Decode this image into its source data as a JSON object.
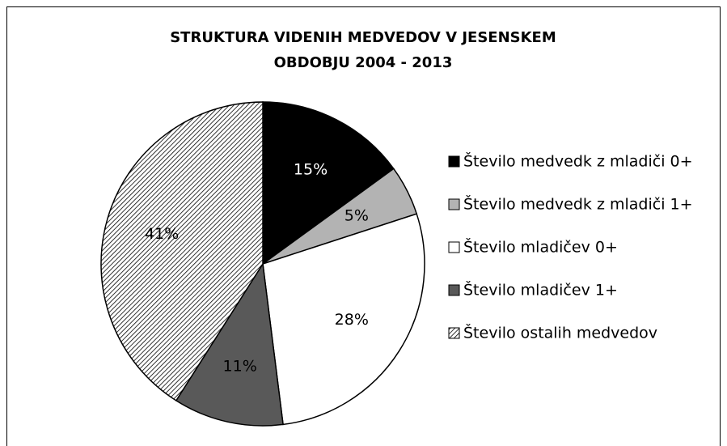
{
  "chart_data": {
    "type": "pie",
    "title": [
      "STRUKTURA VIDENIH MEDVEDOV V JESENSKEM",
      "OBDOBJU 2004 - 2013"
    ],
    "categories": [
      "Število medvedk z mladiči 0+",
      "Število medvedk z mladiči 1+",
      "Število mladičev 0+",
      "Število mladičev 1+",
      "Število ostalih medvedov"
    ],
    "values": [
      15,
      5,
      28,
      11,
      41
    ],
    "value_labels": [
      "15%",
      "5%",
      "28%",
      "11%",
      "41%"
    ],
    "colors": [
      "#000000",
      "#b3b3b3",
      "#ffffff",
      "#595959",
      "#ffffff"
    ],
    "hatched": [
      false,
      false,
      false,
      false,
      true
    ],
    "legend": "right"
  }
}
